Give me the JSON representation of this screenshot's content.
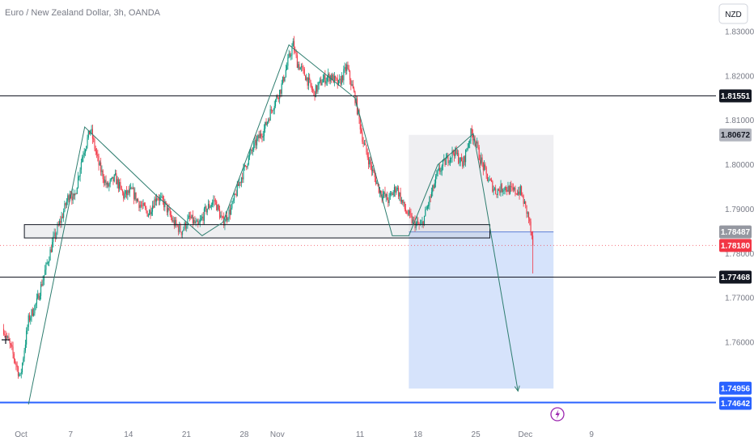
{
  "header": {
    "symbol_title": "Euro / New Zealand Dollar, 3h, OANDA",
    "currency_button": "NZD"
  },
  "chart_data": {
    "type": "candlestick",
    "symbol": "EURNZD",
    "interval": "3h",
    "source": "OANDA",
    "ylim": [
      1.7445,
      1.8335
    ],
    "y_ticks": [
      {
        "value": 1.83,
        "label": "1.83000"
      },
      {
        "value": 1.82,
        "label": "1.82000"
      },
      {
        "value": 1.81,
        "label": "1.81000"
      },
      {
        "value": 1.8,
        "label": "1.80000"
      },
      {
        "value": 1.79,
        "label": "1.79000"
      },
      {
        "value": 1.78,
        "label": "1.78000"
      },
      {
        "value": 1.77,
        "label": "1.77000"
      },
      {
        "value": 1.76,
        "label": "1.76000"
      }
    ],
    "x_ticks": [
      {
        "day": 0,
        "label": "Oct"
      },
      {
        "day": 6,
        "label": "7"
      },
      {
        "day": 13,
        "label": "14"
      },
      {
        "day": 20,
        "label": "21"
      },
      {
        "day": 27,
        "label": "28"
      },
      {
        "day": 31,
        "label": "Nov"
      },
      {
        "day": 41,
        "label": "11"
      },
      {
        "day": 48,
        "label": "18"
      },
      {
        "day": 55,
        "label": "25"
      },
      {
        "day": 61,
        "label": "Dec"
      },
      {
        "day": 69,
        "label": "9"
      }
    ],
    "price_path": [
      [
        -2.0,
        1.763
      ],
      [
        -1.0,
        1.758
      ],
      [
        0.0,
        1.752
      ],
      [
        1.0,
        1.765
      ],
      [
        2.0,
        1.769
      ],
      [
        3.0,
        1.776
      ],
      [
        4.0,
        1.783
      ],
      [
        5.0,
        1.788
      ],
      [
        6.0,
        1.794
      ],
      [
        6.5,
        1.792
      ],
      [
        7.5,
        1.802
      ],
      [
        8.5,
        1.808
      ],
      [
        9.5,
        1.8
      ],
      [
        10.5,
        1.795
      ],
      [
        11.5,
        1.797
      ],
      [
        12.5,
        1.793
      ],
      [
        13.5,
        1.794
      ],
      [
        14.5,
        1.791
      ],
      [
        15.5,
        1.789
      ],
      [
        16.5,
        1.793
      ],
      [
        17.5,
        1.791
      ],
      [
        18.5,
        1.787
      ],
      [
        19.5,
        1.785
      ],
      [
        20.5,
        1.788
      ],
      [
        21.5,
        1.786
      ],
      [
        22.5,
        1.79
      ],
      [
        23.5,
        1.792
      ],
      [
        24.5,
        1.787
      ],
      [
        25.5,
        1.79
      ],
      [
        26.5,
        1.796
      ],
      [
        27.5,
        1.801
      ],
      [
        28.5,
        1.805
      ],
      [
        29.5,
        1.808
      ],
      [
        30.5,
        1.813
      ],
      [
        31.5,
        1.817
      ],
      [
        32.5,
        1.824
      ],
      [
        33.0,
        1.827
      ],
      [
        33.5,
        1.823
      ],
      [
        34.5,
        1.82
      ],
      [
        35.5,
        1.816
      ],
      [
        36.5,
        1.819
      ],
      [
        37.5,
        1.82
      ],
      [
        38.5,
        1.818
      ],
      [
        39.5,
        1.822
      ],
      [
        40.5,
        1.815
      ],
      [
        41.5,
        1.805
      ],
      [
        42.5,
        1.799
      ],
      [
        43.5,
        1.794
      ],
      [
        44.5,
        1.792
      ],
      [
        45.5,
        1.795
      ],
      [
        46.5,
        1.79
      ],
      [
        47.5,
        1.787
      ],
      [
        48.5,
        1.786
      ],
      [
        49.5,
        1.792
      ],
      [
        50.5,
        1.798
      ],
      [
        51.5,
        1.801
      ],
      [
        52.5,
        1.803
      ],
      [
        53.5,
        1.8
      ],
      [
        54.5,
        1.807
      ],
      [
        55.0,
        1.806
      ],
      [
        55.5,
        1.802
      ],
      [
        56.5,
        1.797
      ],
      [
        57.5,
        1.794
      ],
      [
        58.5,
        1.795
      ],
      [
        59.5,
        1.794
      ],
      [
        60.5,
        1.794
      ],
      [
        61.5,
        1.788
      ],
      [
        62.0,
        1.7818
      ]
    ],
    "horizontal_levels": [
      {
        "price": 1.81551,
        "label": "1.81551",
        "color": "#131722"
      },
      {
        "price": 1.80672,
        "label": "1.80672",
        "color": "#b2b5be"
      },
      {
        "price": 1.78487,
        "label": "1.78487",
        "color": "#9598a1"
      },
      {
        "price": 1.7818,
        "label": "1.78180",
        "color": "#f23645"
      },
      {
        "price": 1.77468,
        "label": "1.77468",
        "color": "#131722"
      },
      {
        "price": 1.74956,
        "label": "1.74956",
        "color": "#2962ff"
      },
      {
        "price": 1.74642,
        "label": "1.74642",
        "color": "#2962ff"
      }
    ],
    "support_zone": {
      "day_start": 0.5,
      "day_end": 56.8,
      "price_top": 1.7865,
      "price_bottom": 1.7835
    },
    "position_box": {
      "day_start": 47.0,
      "day_end": 64.5,
      "entry": 1.78487,
      "stop": 1.80672,
      "target": 1.74956
    },
    "zigzag": [
      [
        1.0,
        1.746
      ],
      [
        7.8,
        1.8085
      ],
      [
        16.5,
        1.793
      ],
      [
        22.0,
        1.784
      ],
      [
        24.5,
        1.787
      ],
      [
        32.5,
        1.827
      ],
      [
        40.5,
        1.815
      ],
      [
        45.0,
        1.784
      ],
      [
        47.0,
        1.784
      ],
      [
        50.5,
        1.8
      ],
      [
        53.0,
        1.804
      ],
      [
        54.8,
        1.807
      ],
      [
        55.5,
        1.8
      ],
      [
        60.2,
        1.749
      ]
    ],
    "current_price": 1.7818,
    "colors": {
      "up": "#089981",
      "down": "#f23645",
      "zigzag": "#2e7d6f",
      "position_risk": "#ececf0",
      "position_reward": "#d4e1fb",
      "level": "#131722",
      "axis_text": "#787b86"
    },
    "icons": [
      "lightning-icon",
      "drag-handle-icon"
    ]
  }
}
